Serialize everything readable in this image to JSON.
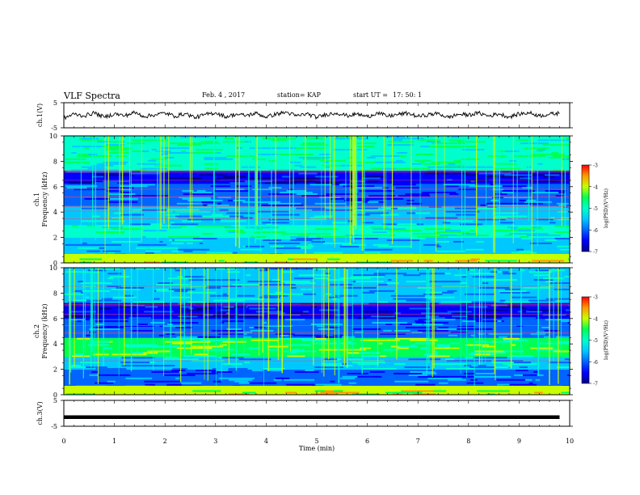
{
  "header": {
    "title": "VLF Spectra",
    "date": "Feb. 4 , 2017",
    "station": "station= KAP",
    "start_label": "start UT =",
    "start_time": "17: 50: 1"
  },
  "colors": {
    "trace": "#000000",
    "colormap": [
      "#00008c",
      "#0000ff",
      "#0064ff",
      "#00c8ff",
      "#00ffcc",
      "#00ff55",
      "#c8ff00",
      "#ff9900",
      "#ff0000"
    ]
  },
  "chart_data": [
    {
      "type": "line",
      "panel": "ch1-waveform",
      "ylabel": "ch.1(V)",
      "ylim": [
        -5,
        5
      ],
      "yticks": [
        "5",
        "-5"
      ],
      "xlim": [
        0,
        10
      ],
      "series": [
        {
          "x": [
            0,
            0.2,
            0.4,
            0.6,
            0.8,
            1.0,
            1.2,
            1.4,
            1.6,
            1.8,
            2.0,
            2.2,
            2.4,
            2.6,
            2.8,
            3.0,
            3.2,
            3.4,
            3.6,
            3.8,
            4.0,
            4.2,
            4.4,
            4.6,
            4.8,
            5.0,
            5.2,
            5.4,
            5.6,
            5.8,
            6.0,
            6.2,
            6.4,
            6.6,
            6.8,
            7.0,
            7.2,
            7.4,
            7.6,
            7.8,
            8.0,
            8.2,
            8.4,
            8.6,
            8.8,
            9.0,
            9.2,
            9.4,
            9.6,
            9.8
          ],
          "values": [
            -1.2,
            0.5,
            -0.3,
            1.0,
            -0.8,
            0.6,
            -0.2,
            1.1,
            -0.5,
            0.2,
            0.9,
            -0.4,
            0.7,
            -0.9,
            0.3,
            1.0,
            -0.6,
            0.4,
            -0.1,
            0.8,
            -0.7,
            0.5,
            1.2,
            -0.3,
            0.6,
            -0.8,
            0.4,
            0.9,
            -0.2,
            0.5,
            -0.6,
            1.0,
            -0.4,
            0.3,
            0.8,
            -0.5,
            0.2,
            0.7,
            -0.9,
            0.4,
            0.1,
            0.9,
            -0.3,
            0.6,
            -0.7,
            0.5,
            1.0,
            -0.2,
            0.4,
            0.8
          ]
        }
      ]
    },
    {
      "type": "heatmap",
      "panel": "ch1-spectrogram",
      "ylabel": "ch.1 Frequency (kHz)",
      "ylim": [
        0,
        10
      ],
      "yticks": [
        "0",
        "2",
        "4",
        "6",
        "8",
        "10"
      ],
      "xlim": [
        0,
        10
      ],
      "colorbar": {
        "label": "log(PSD)(V²/Hz)",
        "range": [
          -7,
          -3
        ],
        "ticks": [
          "-3",
          "-4",
          "-5",
          "-6",
          "-7"
        ]
      }
    },
    {
      "type": "heatmap",
      "panel": "ch2-spectrogram",
      "ylabel": "ch.2 Frequency (kHz)",
      "ylim": [
        0,
        10
      ],
      "yticks": [
        "0",
        "2",
        "4",
        "6",
        "8",
        "10"
      ],
      "xlim": [
        0,
        10
      ],
      "colorbar": {
        "label": "log(PSD)(V²/Hz)",
        "range": [
          -7,
          -3
        ],
        "ticks": [
          "-3",
          "-4",
          "-5",
          "-6",
          "-7"
        ]
      }
    },
    {
      "type": "line",
      "panel": "ch3-waveform",
      "ylabel": "ch.3(V)",
      "ylim": [
        -5,
        5
      ],
      "yticks": [
        "5",
        "-5"
      ],
      "xlim": [
        0,
        10
      ],
      "series": [
        {
          "x": [
            0,
            9.8
          ],
          "values": [
            -1.5,
            -1.5
          ]
        }
      ]
    }
  ],
  "xaxis": {
    "label": "Time (min)",
    "ticks": [
      "0",
      "1",
      "2",
      "3",
      "4",
      "5",
      "6",
      "7",
      "8",
      "9",
      "10"
    ]
  }
}
